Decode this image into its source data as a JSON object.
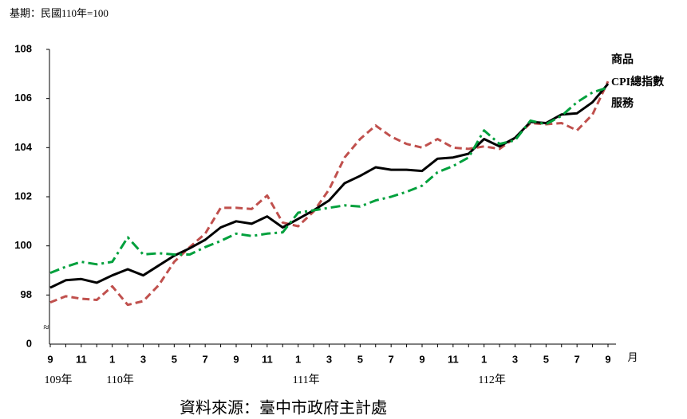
{
  "chart_data": {
    "type": "line",
    "subtitle": "基期：民國110年=100",
    "source": "資料來源：臺中市政府主計處",
    "x_unit": "月",
    "categories": [
      "9",
      null,
      "11",
      null,
      "1",
      null,
      "3",
      null,
      "5",
      null,
      "7",
      null,
      "9",
      null,
      "11",
      null,
      "1",
      null,
      "3",
      null,
      "5",
      null,
      "7",
      null,
      "9",
      null,
      "11",
      null,
      "1",
      null,
      "3",
      null,
      "5",
      null,
      "7",
      null,
      "9"
    ],
    "x_year_labels": [
      {
        "index": 0,
        "label": "109年"
      },
      {
        "index": 4,
        "label": "110年"
      },
      {
        "index": 16,
        "label": "111年"
      },
      {
        "index": 28,
        "label": "112年"
      }
    ],
    "ylim": [
      96,
      108
    ],
    "yticks": [
      98,
      100,
      102,
      104,
      106,
      108
    ],
    "axis_break_label": "0",
    "axis_break_symbol": "≈",
    "series": [
      {
        "name": "商品",
        "color": "#c0504d",
        "dash": "9,5",
        "values": [
          97.7,
          97.95,
          97.85,
          97.8,
          98.35,
          97.6,
          97.75,
          98.4,
          99.35,
          99.95,
          100.5,
          101.55,
          101.55,
          101.5,
          102.05,
          100.95,
          100.8,
          101.4,
          102.3,
          103.6,
          104.35,
          104.9,
          104.45,
          104.15,
          104.0,
          104.35,
          104.0,
          103.95,
          104.05,
          103.95,
          104.4,
          105.0,
          104.95,
          105.0,
          104.7,
          105.35,
          106.7
        ]
      },
      {
        "name": "CPI總指數",
        "color": "#000000",
        "dash": "none",
        "values": [
          98.3,
          98.6,
          98.65,
          98.5,
          98.8,
          99.05,
          98.8,
          99.2,
          99.6,
          99.9,
          100.25,
          100.75,
          101.0,
          100.9,
          101.2,
          100.75,
          101.1,
          101.45,
          101.85,
          102.55,
          102.85,
          103.2,
          103.1,
          103.1,
          103.05,
          103.55,
          103.6,
          103.75,
          104.35,
          104.05,
          104.4,
          105.05,
          105.0,
          105.35,
          105.4,
          105.85,
          106.6
        ]
      },
      {
        "name": "服務",
        "color": "#00a03c",
        "dash": "12,5,3,5",
        "values": [
          98.9,
          99.15,
          99.35,
          99.25,
          99.35,
          100.35,
          99.65,
          99.7,
          99.65,
          99.65,
          99.95,
          100.2,
          100.5,
          100.4,
          100.5,
          100.55,
          101.35,
          101.45,
          101.55,
          101.65,
          101.6,
          101.85,
          102.0,
          102.2,
          102.45,
          103.0,
          103.25,
          103.6,
          104.7,
          104.15,
          104.3,
          105.1,
          104.95,
          105.3,
          105.85,
          106.25,
          106.45
        ]
      }
    ]
  }
}
